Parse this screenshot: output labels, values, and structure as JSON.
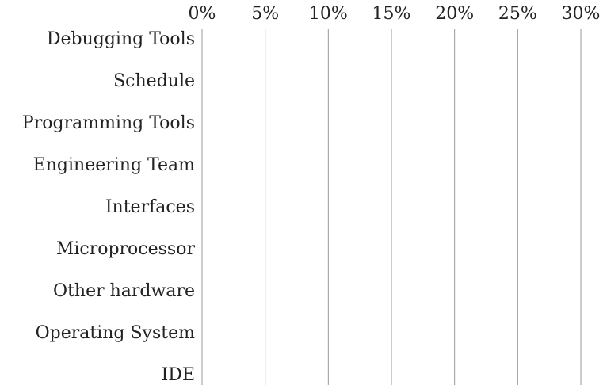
{
  "chart_data": {
    "type": "bar",
    "orientation": "horizontal",
    "categories": [
      "Debugging Tools",
      "Schedule",
      "Programming Tools",
      "Engineering Team",
      "Interfaces",
      "Microprocessor",
      "Other hardware",
      "Operating System",
      "IDE"
    ],
    "xlim": [
      0,
      30
    ],
    "xticks": [
      {
        "value": 0,
        "label": "0%"
      },
      {
        "value": 5,
        "label": "5%"
      },
      {
        "value": 10,
        "label": "10%"
      },
      {
        "value": 15,
        "label": "15%"
      },
      {
        "value": 20,
        "label": "20%"
      },
      {
        "value": 25,
        "label": "25%"
      },
      {
        "value": 30,
        "label": "30%"
      }
    ],
    "grid": true
  }
}
